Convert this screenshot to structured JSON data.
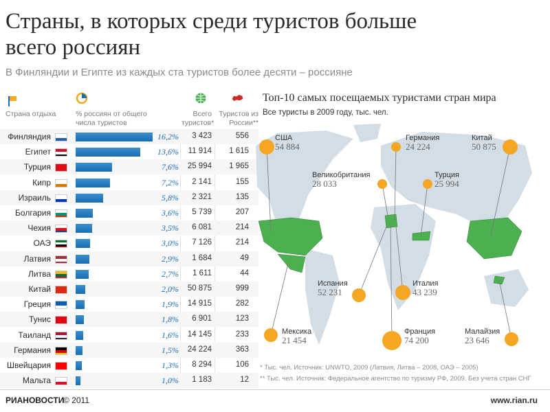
{
  "title": "Страны, в которых среди туристов больше всего россиян",
  "subtitle": "В Финляндии и Египте из каждых ста туристов более десяти – россияне",
  "headers": {
    "country": "Страна отдыха",
    "share": "% россиян от общего числа туристов",
    "total": "Всего туристов*",
    "russia": "Туристов из России**"
  },
  "chart_data": [
    {
      "type": "table",
      "columns": [
        "Страна отдыха",
        "% россиян от общего числа туристов",
        "Всего туристов*",
        "Туристов из России**"
      ],
      "rows": [
        {
          "country": "Финляндия",
          "pct": 16.2,
          "pct_label": "16,2%",
          "total": "3 423",
          "russia": "556",
          "flag": [
            "#ffffff",
            "#2a5db0"
          ]
        },
        {
          "country": "Египет",
          "pct": 13.6,
          "pct_label": "13,6%",
          "total": "11 914",
          "russia": "1 615",
          "flag": [
            "#ce1126",
            "#ffffff",
            "#000000"
          ]
        },
        {
          "country": "Турция",
          "pct": 7.6,
          "pct_label": "7,6%",
          "total": "25 994",
          "russia": "1 965",
          "flag": [
            "#e30a17"
          ]
        },
        {
          "country": "Кипр",
          "pct": 7.2,
          "pct_label": "7,2%",
          "total": "2 141",
          "russia": "155",
          "flag": [
            "#ffffff",
            "#d57800"
          ]
        },
        {
          "country": "Израиль",
          "pct": 5.8,
          "pct_label": "5,8%",
          "total": "2 321",
          "russia": "135",
          "flag": [
            "#ffffff",
            "#0038b8"
          ]
        },
        {
          "country": "Болгария",
          "pct": 3.6,
          "pct_label": "3,6%",
          "total": "5 739",
          "russia": "207",
          "flag": [
            "#ffffff",
            "#00966e",
            "#d62612"
          ]
        },
        {
          "country": "Чехия",
          "pct": 3.5,
          "pct_label": "3,5%",
          "total": "6 081",
          "russia": "214",
          "flag": [
            "#ffffff",
            "#d7141a",
            "#11457e"
          ]
        },
        {
          "country": "ОАЭ",
          "pct": 3.0,
          "pct_label": "3,0%",
          "total": "7 126",
          "russia": "214",
          "flag": [
            "#00732f",
            "#ffffff",
            "#000000",
            "#ff0000"
          ]
        },
        {
          "country": "Латвия",
          "pct": 2.9,
          "pct_label": "2,9%",
          "total": "1 684",
          "russia": "49",
          "flag": [
            "#9e3039",
            "#ffffff",
            "#9e3039"
          ]
        },
        {
          "country": "Литва",
          "pct": 2.7,
          "pct_label": "2,7%",
          "total": "1 611",
          "russia": "44",
          "flag": [
            "#fdb913",
            "#006a44",
            "#c1272d"
          ]
        },
        {
          "country": "Китай",
          "pct": 2.0,
          "pct_label": "2,0%",
          "total": "50 875",
          "russia": "999",
          "flag": [
            "#de2910"
          ]
        },
        {
          "country": "Греция",
          "pct": 1.9,
          "pct_label": "1,9%",
          "total": "14 915",
          "russia": "282",
          "flag": [
            "#0d5eaf",
            "#ffffff"
          ]
        },
        {
          "country": "Тунис",
          "pct": 1.8,
          "pct_label": "1,8%",
          "total": "6 901",
          "russia": "123",
          "flag": [
            "#e70013"
          ]
        },
        {
          "country": "Таиланд",
          "pct": 1.6,
          "pct_label": "1,6%",
          "total": "14 145",
          "russia": "233",
          "flag": [
            "#a51931",
            "#f4f5f8",
            "#2d2a4a"
          ]
        },
        {
          "country": "Германия",
          "pct": 1.5,
          "pct_label": "1,5%",
          "total": "24 224",
          "russia": "363",
          "flag": [
            "#000000",
            "#dd0000",
            "#ffce00"
          ]
        },
        {
          "country": "Швейцария",
          "pct": 1.3,
          "pct_label": "1,3%",
          "total": "8 294",
          "russia": "106",
          "flag": [
            "#ff0000"
          ]
        },
        {
          "country": "Мальта",
          "pct": 1.0,
          "pct_label": "1,0%",
          "total": "1 183",
          "russia": "12",
          "flag": [
            "#ffffff",
            "#cf142b"
          ]
        }
      ]
    },
    {
      "type": "map",
      "title": "Топ-10 самых посещаемых туристами стран мира",
      "subtitle": "Все туристы в 2009 году, тыс. чел.",
      "points": [
        {
          "country": "США",
          "value": "54 884"
        },
        {
          "country": "Германия",
          "value": "24 224"
        },
        {
          "country": "Китай",
          "value": "50 875"
        },
        {
          "country": "Великобритания",
          "value": "28 033"
        },
        {
          "country": "Турция",
          "value": "25 994"
        },
        {
          "country": "Испания",
          "value": "52 231"
        },
        {
          "country": "Италия",
          "value": "43 239"
        },
        {
          "country": "Мексика",
          "value": "21 454"
        },
        {
          "country": "Франция",
          "value": "74 200"
        },
        {
          "country": "Малайзия",
          "value": "23 646"
        }
      ]
    }
  ],
  "notes": [
    "* Тыс. чел. Источник: UNWTO, 2009 (Латвия, Литва – 2008, ОАЭ – 2005)",
    "** Тыс. чел. Источник: Федеральное агентство по туризму РФ, 2009. Без учета стран СНГ"
  ],
  "footer": {
    "logo": "РИАНОВОСТИ",
    "copyright": "© 2011",
    "site": "www.rian.ru"
  },
  "colors": {
    "bar": "#1a6cb0",
    "marker": "#f5a623",
    "highlight": "#4caf50",
    "land": "#d3dde5"
  }
}
